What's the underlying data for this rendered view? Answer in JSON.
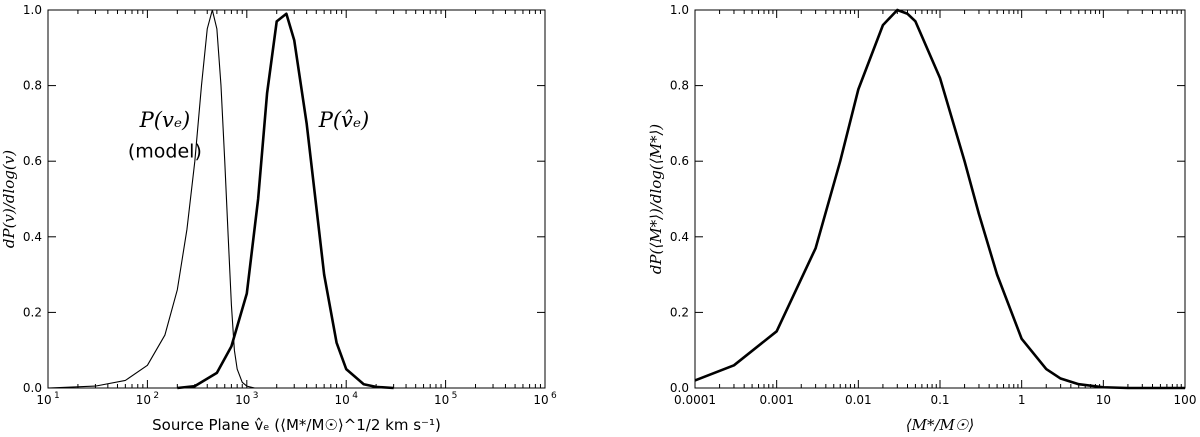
{
  "chart_data": [
    {
      "type": "line",
      "panel": "left",
      "xscale": "log",
      "xlim": [
        10,
        1000000
      ],
      "ylim": [
        0.0,
        1.0
      ],
      "xticks": [
        10,
        100,
        1000,
        10000,
        100000,
        1000000
      ],
      "xtick_labels": [
        {
          "base": "10",
          "exp": "1"
        },
        {
          "base": "10",
          "exp": "2"
        },
        {
          "base": "10",
          "exp": "3"
        },
        {
          "base": "10",
          "exp": "4"
        },
        {
          "base": "10",
          "exp": "5"
        },
        {
          "base": "10",
          "exp": "6"
        }
      ],
      "yticks": [
        0.0,
        0.2,
        0.4,
        0.6,
        0.8,
        1.0
      ],
      "ytick_labels": [
        "0.0",
        "0.2",
        "0.4",
        "0.6",
        "0.8",
        "1.0"
      ],
      "xlabel": "Source Plane v̂ₑ (⟨M*/M☉⟩^1/2 km s⁻¹)",
      "ylabel": "dP(v)/dlog(v)",
      "annotations": {
        "model_curve_label": "P(vₑ)",
        "model_curve_sublabel": "(model)",
        "observed_curve_label": "P(v̂ₑ)"
      },
      "series": [
        {
          "line_weight": "thin",
          "x": [
            10,
            30,
            60,
            100,
            150,
            200,
            250,
            300,
            350,
            400,
            450,
            500,
            550,
            600,
            650,
            700,
            750,
            800,
            900,
            1000,
            1200
          ],
          "y": [
            0.0,
            0.005,
            0.02,
            0.06,
            0.14,
            0.26,
            0.42,
            0.6,
            0.8,
            0.95,
            1.0,
            0.95,
            0.8,
            0.6,
            0.4,
            0.22,
            0.1,
            0.05,
            0.015,
            0.005,
            0.0
          ]
        },
        {
          "line_weight": "thick",
          "x": [
            200,
            300,
            500,
            700,
            1000,
            1300,
            1600,
            2000,
            2500,
            3000,
            4000,
            5000,
            6000,
            8000,
            10000,
            15000,
            20000,
            30000
          ],
          "y": [
            0.0,
            0.005,
            0.04,
            0.11,
            0.25,
            0.5,
            0.78,
            0.97,
            0.99,
            0.92,
            0.7,
            0.48,
            0.3,
            0.12,
            0.05,
            0.01,
            0.003,
            0.0
          ]
        }
      ]
    },
    {
      "type": "line",
      "panel": "right",
      "xscale": "log",
      "xlim": [
        0.0001,
        100
      ],
      "ylim": [
        0.0,
        1.0
      ],
      "xticks": [
        0.0001,
        0.001,
        0.01,
        0.1,
        1,
        10,
        100
      ],
      "xtick_labels": [
        "0.0001",
        "0.001",
        "0.01",
        "0.1",
        "1",
        "10",
        "100"
      ],
      "yticks": [
        0.0,
        0.2,
        0.4,
        0.6,
        0.8,
        1.0
      ],
      "ytick_labels": [
        "0.0",
        "0.2",
        "0.4",
        "0.6",
        "0.8",
        "1.0"
      ],
      "xlabel": "⟨M*/M☉⟩",
      "ylabel": "dP(⟨M*⟩)/dlog(⟨M*⟩)",
      "series": [
        {
          "line_weight": "thick",
          "x": [
            0.0001,
            0.0003,
            0.001,
            0.003,
            0.006,
            0.01,
            0.02,
            0.03,
            0.04,
            0.05,
            0.1,
            0.2,
            0.3,
            0.5,
            1,
            2,
            3,
            5,
            10,
            20,
            50,
            100
          ],
          "y": [
            0.02,
            0.06,
            0.15,
            0.37,
            0.6,
            0.79,
            0.96,
            1.0,
            0.99,
            0.97,
            0.82,
            0.6,
            0.46,
            0.3,
            0.13,
            0.05,
            0.025,
            0.01,
            0.002,
            0.0,
            0.0,
            0.0
          ]
        }
      ]
    }
  ]
}
